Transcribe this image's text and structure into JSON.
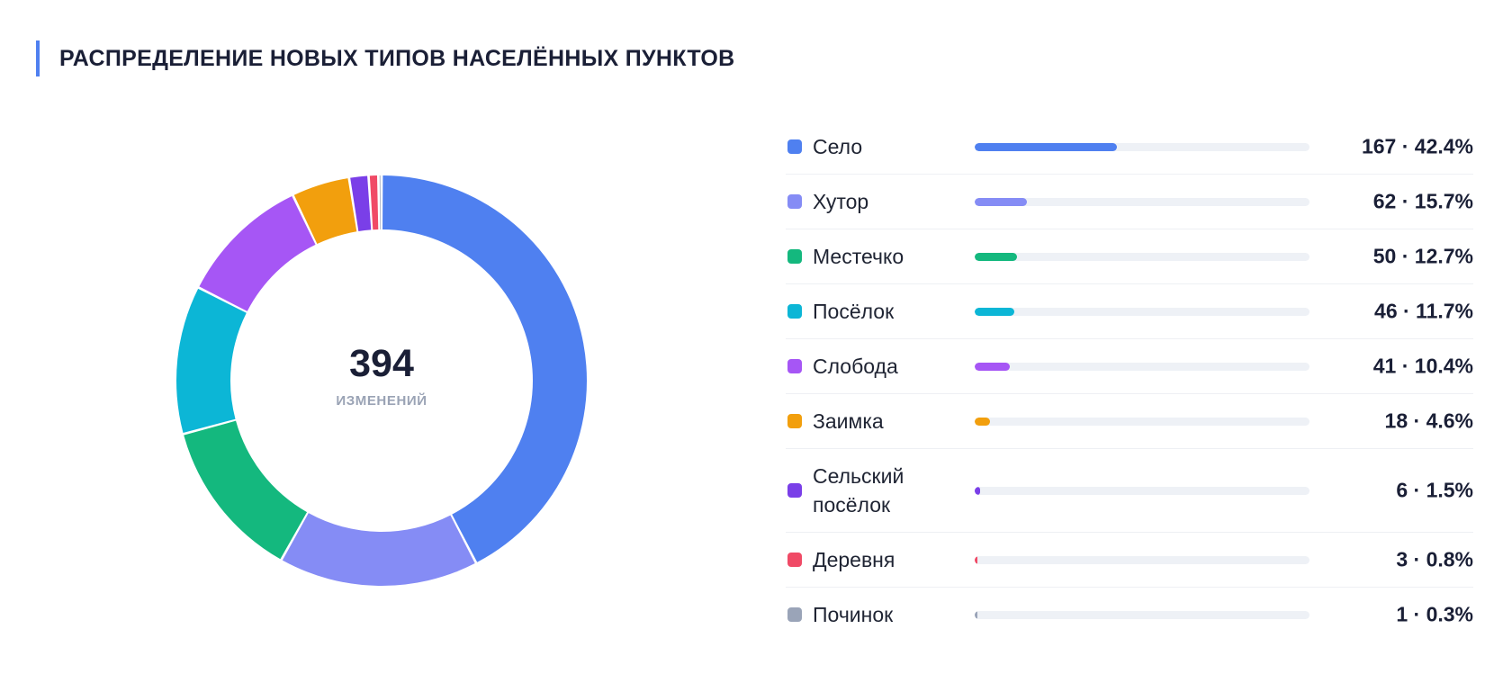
{
  "title": "РАСПРЕДЕЛЕНИЕ НОВЫХ ТИПОВ НАСЕЛЁННЫХ ПУНКТОВ",
  "accent_color": "#4f80f0",
  "center": {
    "total": "394",
    "label": "ИЗМЕНЕНИЙ"
  },
  "chart_data": {
    "type": "pie",
    "variant": "donut",
    "total": 394,
    "series": [
      {
        "name": "Село",
        "value": 167,
        "percent": 42.4,
        "display": "167 · 42.4%",
        "color": "#4f80f0"
      },
      {
        "name": "Хутор",
        "value": 62,
        "percent": 15.7,
        "display": "62 · 15.7%",
        "color": "#858cf5"
      },
      {
        "name": "Местечко",
        "value": 50,
        "percent": 12.7,
        "display": "50 · 12.7%",
        "color": "#14b87e"
      },
      {
        "name": "Посёлок",
        "value": 46,
        "percent": 11.7,
        "display": "46 · 11.7%",
        "color": "#0cb6d6"
      },
      {
        "name": "Слобода",
        "value": 41,
        "percent": 10.4,
        "display": "41 · 10.4%",
        "color": "#a656f5"
      },
      {
        "name": "Заимка",
        "value": 18,
        "percent": 4.6,
        "display": "18 · 4.6%",
        "color": "#f29f0d"
      },
      {
        "name": "Сельский посёлок",
        "value": 6,
        "percent": 1.5,
        "display": "6 · 1.5%",
        "color": "#7a3fe8"
      },
      {
        "name": "Деревня",
        "value": 3,
        "percent": 0.8,
        "display": "3 · 0.8%",
        "color": "#f04a66"
      },
      {
        "name": "Починок",
        "value": 1,
        "percent": 0.3,
        "display": "1 · 0.3%",
        "color": "#9aa4b8"
      }
    ],
    "legend_position": "right"
  }
}
